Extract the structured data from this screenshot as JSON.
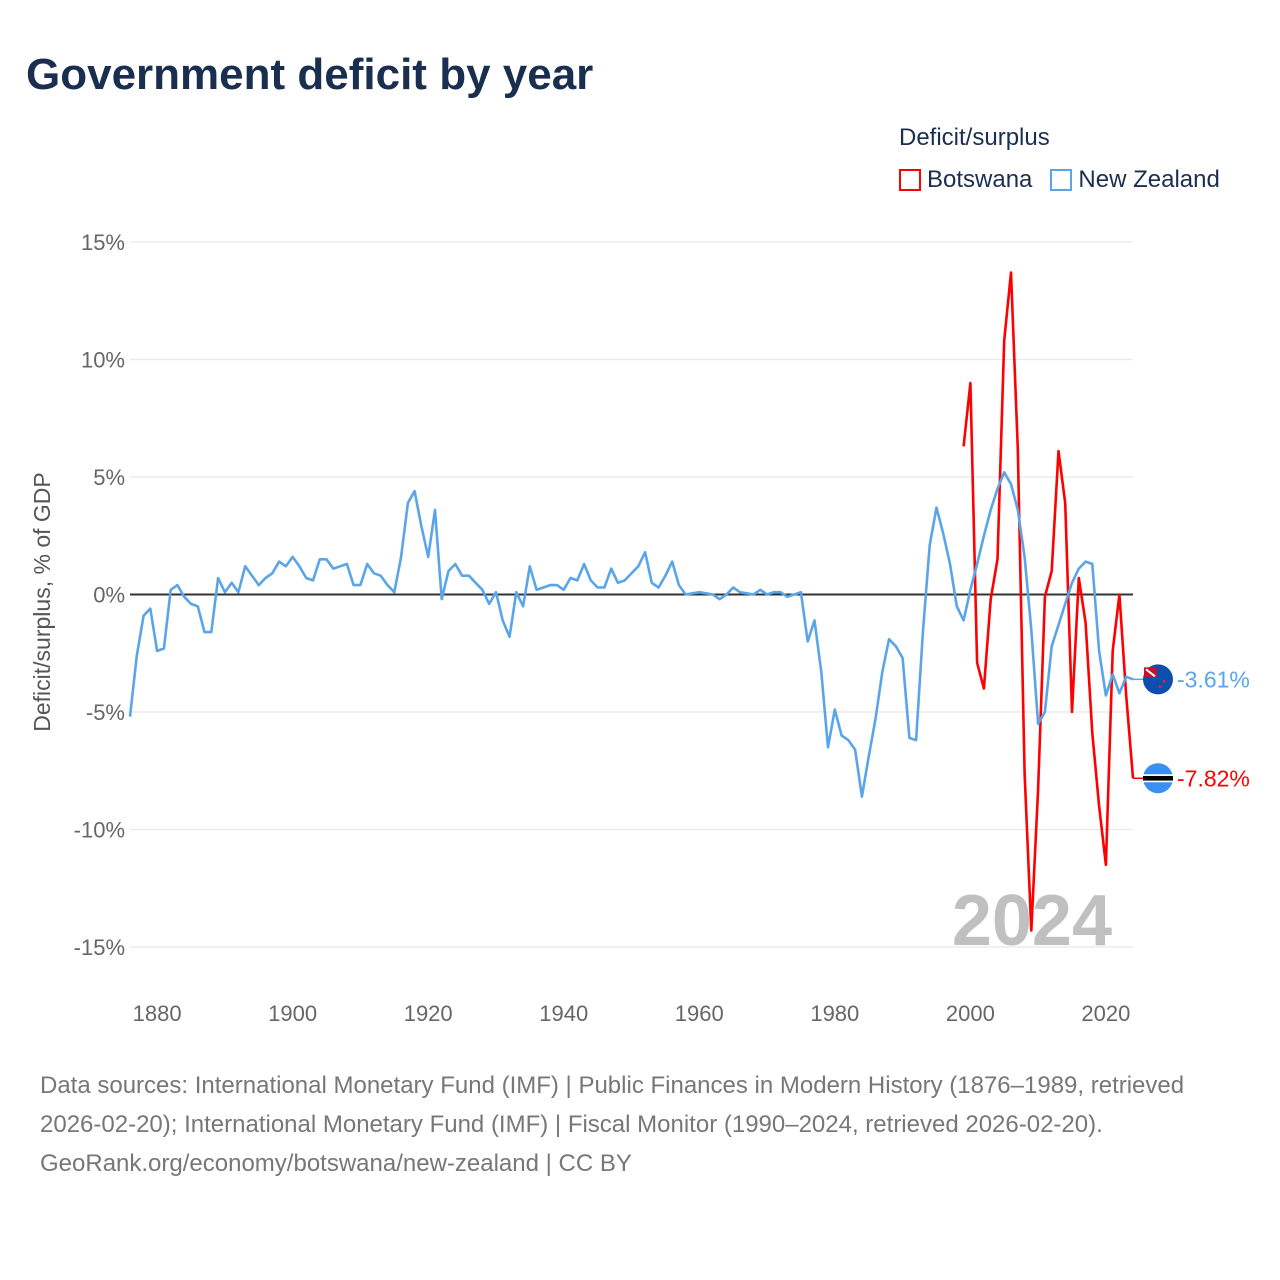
{
  "title": "Government deficit by year",
  "legend": {
    "title": "Deficit/surplus",
    "items": [
      {
        "name": "Botswana",
        "color": "#ff0000"
      },
      {
        "name": "New Zealand",
        "color": "#5aa5ea"
      }
    ]
  },
  "footer": {
    "sources": "Data sources: International Monetary Fund (IMF) | Public Finances in Modern History (1876–1989, retrieved 2026-02-20); International Monetary Fund (IMF) | Fiscal Monitor (1990–2024, retrieved 2026-02-20).",
    "credit": "GeoRank.org/economy/botswana/new-zealand | CC BY"
  },
  "chart_data": {
    "type": "line",
    "title": "Government deficit by year",
    "xlabel": "",
    "ylabel": "Deficit/surplus, % of GDP",
    "xlim": [
      1876,
      2024
    ],
    "ylim": [
      -15,
      15
    ],
    "xticks": [
      1880,
      1900,
      1920,
      1940,
      1960,
      1980,
      2000,
      2020
    ],
    "yticks": [
      {
        "v": 15,
        "label": "15%"
      },
      {
        "v": 10,
        "label": "10%"
      },
      {
        "v": 5,
        "label": "5%"
      },
      {
        "v": 0,
        "label": "0%"
      },
      {
        "v": -5,
        "label": "-5%"
      },
      {
        "v": -10,
        "label": "-10%"
      },
      {
        "v": -15,
        "label": "-15%"
      }
    ],
    "grid": true,
    "legend_position": "top-right",
    "year_watermark": "2024",
    "series": [
      {
        "name": "New Zealand",
        "color": "#5aa5ea",
        "end_label": "-3.61%",
        "flag": "new-zealand",
        "start_year": 1876,
        "values": [
          -5.2,
          -2.6,
          -0.9,
          -0.6,
          -2.4,
          -2.3,
          0.2,
          0.4,
          -0.1,
          -0.4,
          -0.5,
          -1.6,
          -1.6,
          0.7,
          0.1,
          0.5,
          0.1,
          1.2,
          0.8,
          0.4,
          0.7,
          0.9,
          1.4,
          1.2,
          1.6,
          1.2,
          0.7,
          0.6,
          1.5,
          1.5,
          1.1,
          1.2,
          1.3,
          0.4,
          0.4,
          1.3,
          0.9,
          0.8,
          0.4,
          0.1,
          1.6,
          3.9,
          4.4,
          2.9,
          1.6,
          3.6,
          -0.2,
          1.0,
          1.3,
          0.8,
          0.8,
          0.5,
          0.2,
          -0.4,
          0.1,
          -1.1,
          -1.8,
          0.1,
          -0.5,
          1.2,
          0.2,
          0.3,
          0.4,
          0.4,
          0.2,
          0.7,
          0.6,
          1.3,
          0.6,
          0.3,
          0.3,
          1.1,
          0.5,
          0.6,
          0.9,
          1.2,
          1.8,
          0.5,
          0.3,
          0.8,
          1.4,
          0.4,
          0.0,
          0.05,
          0.1,
          0.05,
          0.0,
          -0.2,
          0.0,
          0.3,
          0.1,
          0.05,
          0.0,
          0.2,
          0.0,
          0.1,
          0.1,
          -0.1,
          0.0,
          0.1,
          -2.0,
          -1.1,
          -3.3,
          -6.5,
          -4.9,
          -6.0,
          -6.2,
          -6.6,
          -8.6,
          -6.9,
          -5.3,
          -3.3,
          -1.9,
          -2.2,
          -2.7,
          -6.1,
          -6.2,
          -1.6,
          2.1,
          3.7,
          2.6,
          1.3,
          -0.5,
          -1.1,
          0.2,
          1.3,
          2.5,
          3.6,
          4.5,
          5.2,
          4.7,
          3.6,
          1.6,
          -1.5,
          -5.5,
          -5.0,
          -2.2,
          -1.3,
          -0.4,
          0.5,
          1.1,
          1.4,
          1.3,
          -2.4,
          -4.3,
          -3.4,
          -4.2,
          -3.5,
          -3.61
        ]
      },
      {
        "name": "Botswana",
        "color": "#ff0000",
        "end_label": "-7.82%",
        "flag": "botswana",
        "start_year": 1999,
        "values": [
          6.3,
          9.0,
          -2.9,
          -4.0,
          -0.2,
          1.5,
          10.8,
          13.7,
          6.2,
          -7.6,
          -14.3,
          -8.3,
          -0.1,
          1.0,
          6.1,
          3.9,
          -5.0,
          0.7,
          -1.2,
          -5.9,
          -9.0,
          -11.5,
          -2.4,
          0.0,
          -4.3,
          -7.82
        ]
      }
    ]
  }
}
